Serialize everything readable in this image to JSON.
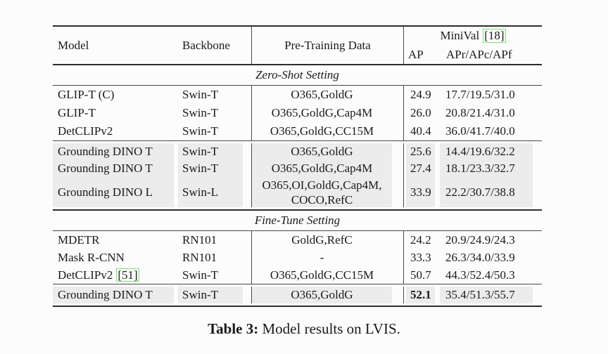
{
  "colors": {
    "highlight": "#ececec",
    "citation_border": "#7fe07f"
  },
  "table": {
    "header": {
      "model": "Model",
      "backbone": "Backbone",
      "pretrain": "Pre-Training Data",
      "minival": "MiniVal",
      "minival_cite": "[18]",
      "ap": "AP",
      "apr": "APr/APc/APf"
    },
    "sections": [
      {
        "title": "Zero-Shot Setting",
        "groups": [
          {
            "highlight": false,
            "rows": [
              {
                "model": "GLIP-T (C)",
                "backbone": "Swin-T",
                "pretrain": "O365,GoldG",
                "ap": "24.9",
                "apr": "17.7/19.5/31.0"
              },
              {
                "model": "GLIP-T",
                "backbone": "Swin-T",
                "pretrain": "O365,GoldG,Cap4M",
                "ap": "26.0",
                "apr": "20.8/21.4/31.0"
              },
              {
                "model": "DetCLIPv2",
                "backbone": "Swin-T",
                "pretrain": "O365,GoldG,CC15M",
                "ap": "40.4",
                "apr": "36.0/41.7/40.0"
              }
            ]
          },
          {
            "highlight": true,
            "rows": [
              {
                "model": "Grounding DINO T",
                "backbone": "Swin-T",
                "pretrain": "O365,GoldG",
                "ap": "25.6",
                "apr": "14.4/19.6/32.2"
              },
              {
                "model": "Grounding DINO T",
                "backbone": "Swin-T",
                "pretrain": "O365,GoldG,Cap4M",
                "ap": "27.4",
                "apr": "18.1/23.3/32.7"
              },
              {
                "model": "Grounding DINO L",
                "backbone": "Swin-L",
                "pretrain": "O365,OI,GoldG,Cap4M,\nCOCO,RefC",
                "ap": "33.9",
                "apr": "22.2/30.7/38.8"
              }
            ]
          }
        ]
      },
      {
        "title": "Fine-Tune Setting",
        "groups": [
          {
            "highlight": false,
            "rows": [
              {
                "model": "MDETR",
                "backbone": "RN101",
                "pretrain": "GoldG,RefC",
                "ap": "24.2",
                "apr": "20.9/24.9/24.3"
              },
              {
                "model": "Mask R-CNN",
                "backbone": "RN101",
                "pretrain": "-",
                "ap": "33.3",
                "apr": "26.3/34.0/33.9"
              },
              {
                "model": "DetCLIPv2",
                "model_cite": "[51]",
                "backbone": "Swin-T",
                "pretrain": "O365,GoldG,CC15M",
                "ap": "50.7",
                "apr": "44.3/52.4/50.3"
              }
            ]
          },
          {
            "highlight": true,
            "rows": [
              {
                "model": "Grounding DINO T",
                "backbone": "Swin-T",
                "pretrain": "O365,GoldG",
                "ap": "52.1",
                "apr": "35.4/51.3/55.7"
              }
            ]
          }
        ]
      }
    ]
  },
  "caption": {
    "label": "Table 3:",
    "text": "Model results on LVIS."
  }
}
